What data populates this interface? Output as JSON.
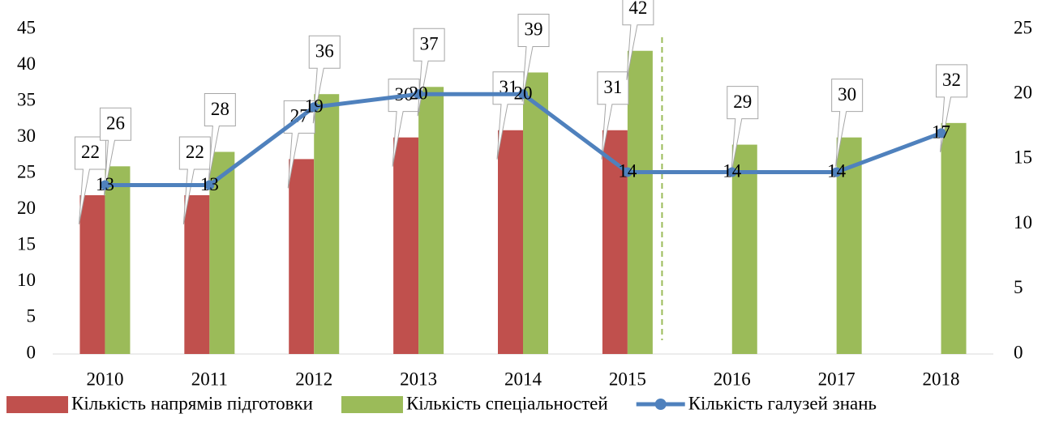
{
  "chart_data": {
    "type": "combo",
    "categories": [
      "2010",
      "2011",
      "2012",
      "2013",
      "2014",
      "2015",
      "2016",
      "2017",
      "2018"
    ],
    "series": [
      {
        "name": "Кількість напрямів підготовки",
        "type": "bar",
        "color": "#c0504d",
        "values": [
          22,
          22,
          27,
          30,
          31,
          31,
          null,
          null,
          null
        ]
      },
      {
        "name": "Кількість спеціальностей",
        "type": "bar",
        "color": "#9bbb59",
        "values": [
          26,
          28,
          36,
          37,
          39,
          42,
          29,
          30,
          32
        ]
      },
      {
        "name": "Кількість галузей знань",
        "type": "line",
        "axis": "y2",
        "color": "#4f81bd",
        "values": [
          13,
          13,
          19,
          20,
          20,
          14,
          14,
          14,
          17
        ]
      }
    ],
    "ylim": [
      0,
      45
    ],
    "yticks": [
      0,
      5,
      10,
      15,
      20,
      25,
      30,
      35,
      40,
      45
    ],
    "y2lim": [
      0,
      25
    ],
    "y2ticks": [
      0,
      5,
      10,
      15,
      20,
      25
    ],
    "grid": false,
    "legend": "bottom"
  }
}
